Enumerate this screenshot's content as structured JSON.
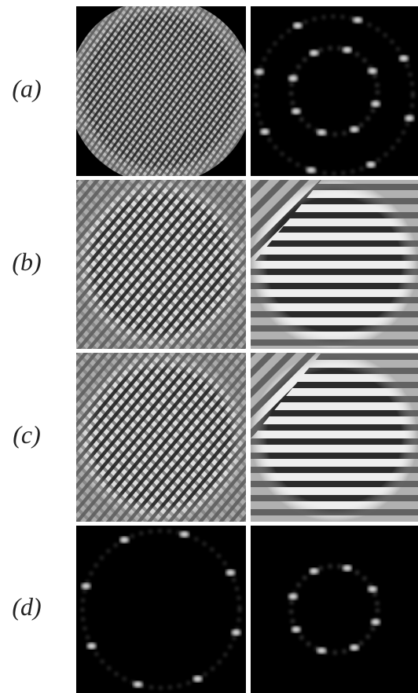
{
  "rows": [
    {
      "label": "(a)"
    },
    {
      "label": "(b)"
    },
    {
      "label": "(c)"
    },
    {
      "label": "(d)"
    }
  ]
}
